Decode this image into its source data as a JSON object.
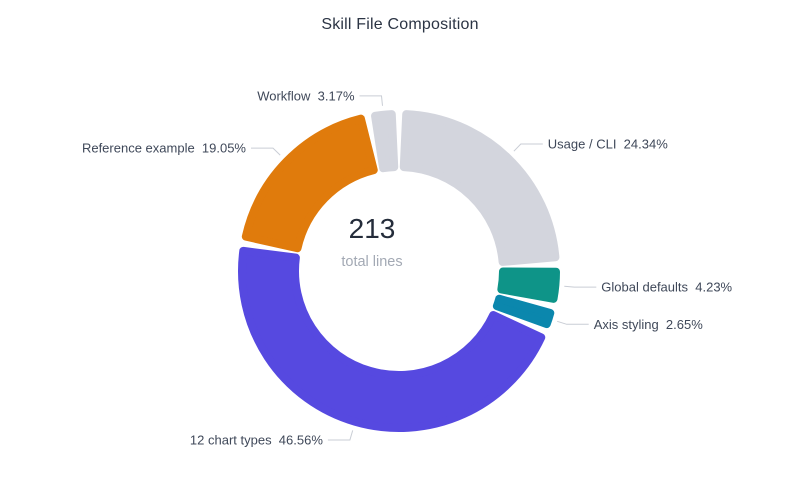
{
  "title": "Skill File Composition",
  "chart_data": {
    "type": "pie",
    "subtype": "donut",
    "title": "Skill File Composition",
    "center_value": "213",
    "center_caption": "total lines",
    "start_angle_deg": 0,
    "direction": "clockwise-from-top",
    "legend_position": "none",
    "label_color": "#3f4859",
    "label_line_color": "#c9cdd5",
    "title_color": "#2b3444",
    "center_value_color": "#242c3a",
    "center_caption_color": "#a3a9b4",
    "slices": [
      {
        "name": "Usage / CLI",
        "pct": 24.34,
        "pct_label": "24.34%",
        "color": "#d3d5dd"
      },
      {
        "name": "Global defaults",
        "pct": 4.23,
        "pct_label": "4.23%",
        "color": "#0e9488"
      },
      {
        "name": "Axis styling",
        "pct": 2.65,
        "pct_label": "2.65%",
        "color": "#0b87ad"
      },
      {
        "name": "12 chart types",
        "pct": 46.56,
        "pct_label": "46.56%",
        "color": "#5649e0"
      },
      {
        "name": "Reference example",
        "pct": 19.05,
        "pct_label": "19.05%",
        "color": "#e07b0c"
      },
      {
        "name": "Workflow",
        "pct": 3.17,
        "pct_label": "3.17%",
        "color": "#d3d5dd"
      }
    ]
  }
}
